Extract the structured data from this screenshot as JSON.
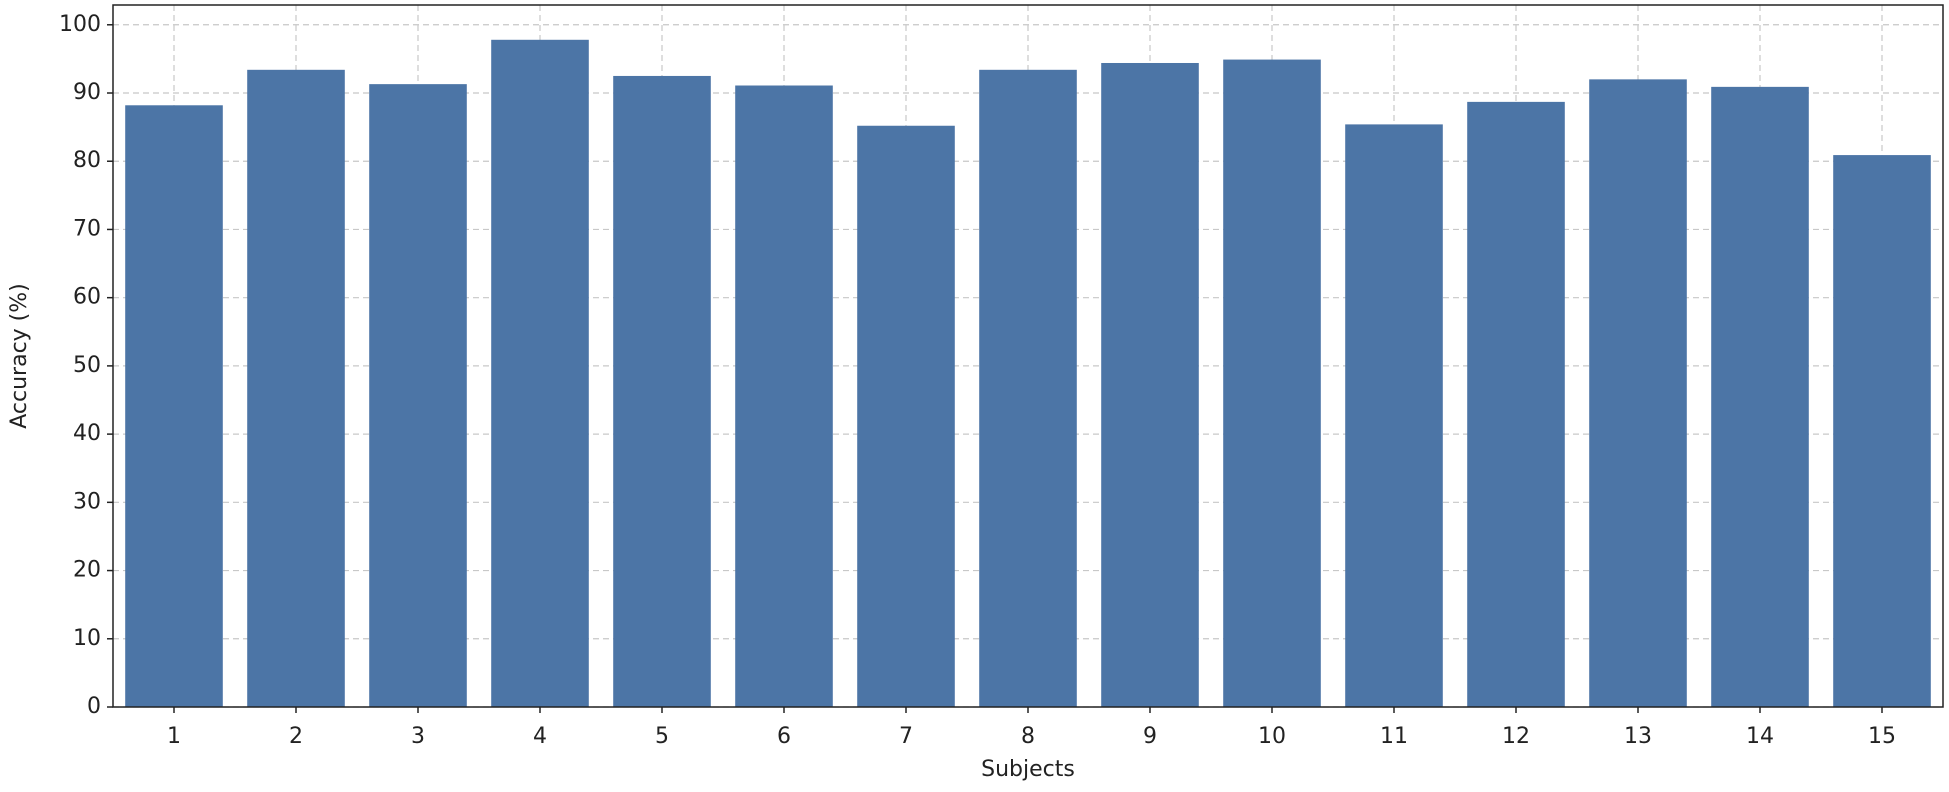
{
  "chart_data": {
    "type": "bar",
    "xlabel": "Subjects",
    "ylabel": "Accuracy (%)",
    "categories": [
      "1",
      "2",
      "3",
      "4",
      "5",
      "6",
      "7",
      "8",
      "9",
      "10",
      "11",
      "12",
      "13",
      "14",
      "15"
    ],
    "values": [
      88.2,
      93.4,
      91.3,
      97.8,
      92.5,
      91.1,
      85.2,
      93.4,
      94.4,
      94.9,
      85.4,
      88.7,
      92.0,
      90.9,
      80.9
    ],
    "color": "#4c75a6",
    "ylim": [
      0,
      102.9
    ],
    "yticks": [
      0,
      10,
      20,
      30,
      40,
      50,
      60,
      70,
      80,
      90,
      100
    ],
    "grid": true
  }
}
